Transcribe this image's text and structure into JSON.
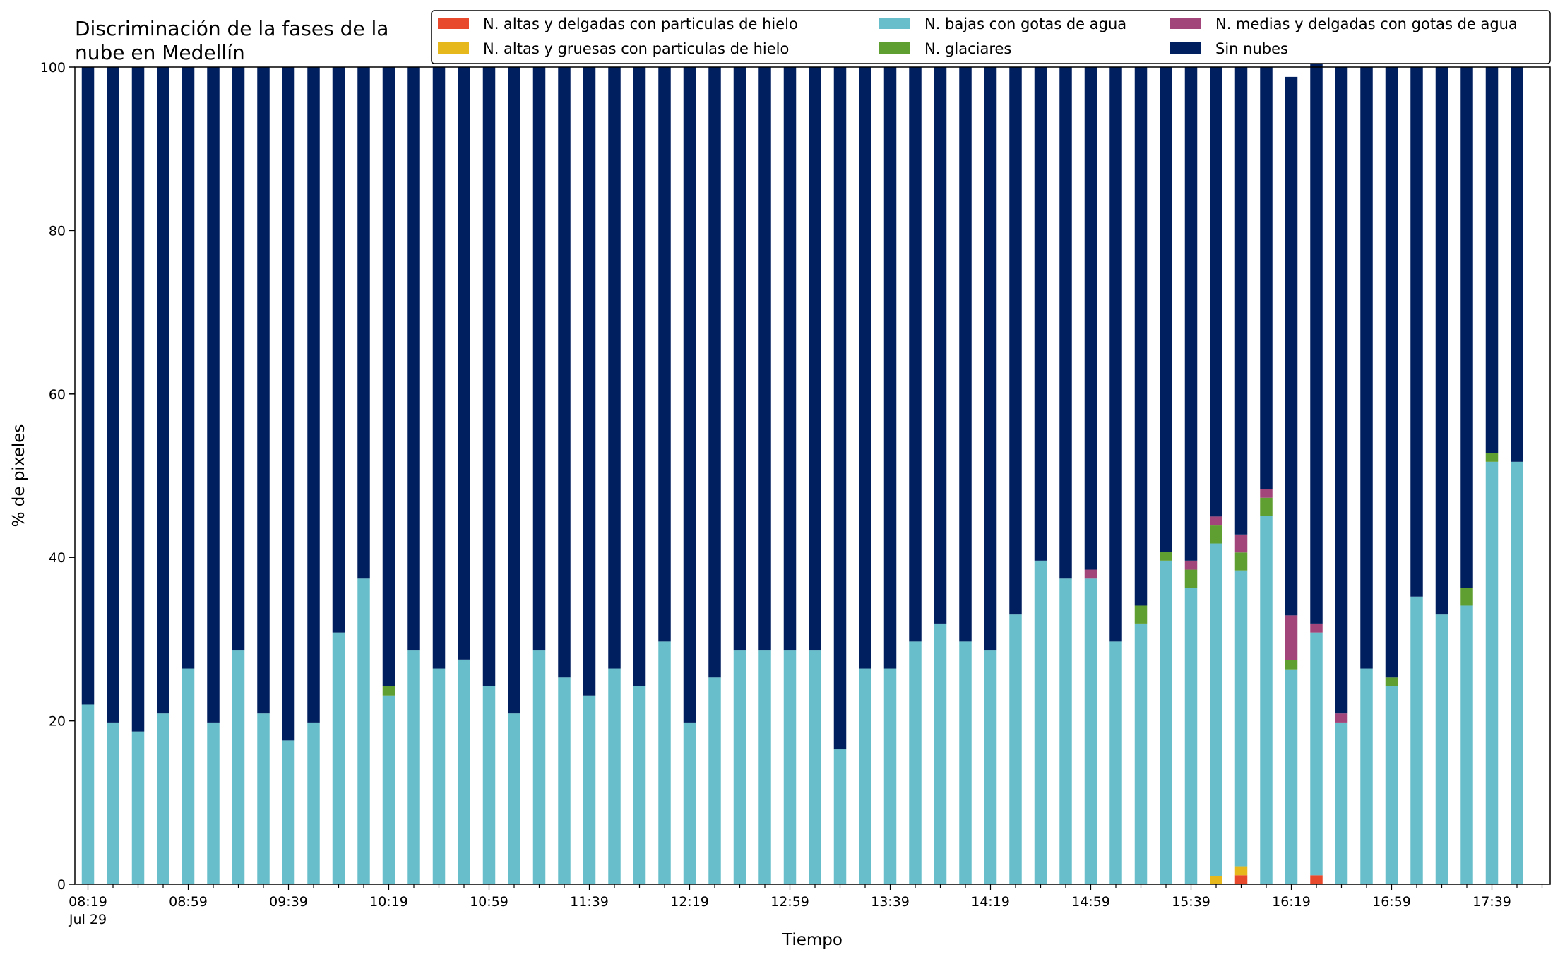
{
  "chart_data": {
    "type": "bar",
    "stacked": true,
    "title_lines": [
      "Discriminación de la fases de la",
      "nube en Medellín"
    ],
    "xlabel": "Tiempo",
    "ylabel": "% de pixeles",
    "ylim": [
      0,
      100
    ],
    "y_ticks": [
      0,
      20,
      40,
      60,
      80,
      100
    ],
    "x_tick_labels": [
      "08:19",
      "08:59",
      "09:39",
      "10:19",
      "10:59",
      "11:39",
      "12:19",
      "12:59",
      "13:39",
      "14:19",
      "14:59",
      "15:39",
      "16:19",
      "16:59",
      "17:39"
    ],
    "x_date_label": "Jul 29",
    "legend_position": "top-right",
    "categories": [
      "08:19",
      "08:29",
      "08:39",
      "08:49",
      "08:59",
      "09:09",
      "09:19",
      "09:29",
      "09:39",
      "09:49",
      "09:59",
      "10:09",
      "10:19",
      "10:29",
      "10:39",
      "10:49",
      "10:59",
      "11:09",
      "11:19",
      "11:29",
      "11:39",
      "11:49",
      "11:59",
      "12:09",
      "12:19",
      "12:29",
      "12:39",
      "12:49",
      "12:59",
      "13:09",
      "13:19",
      "13:29",
      "13:39",
      "13:49",
      "13:59",
      "14:09",
      "14:19",
      "14:29",
      "14:39",
      "14:49",
      "14:59",
      "15:09",
      "15:19",
      "15:29",
      "15:39",
      "15:49",
      "15:59",
      "16:09",
      "16:19",
      "16:29",
      "16:39",
      "16:49",
      "16:59",
      "17:09",
      "17:19",
      "17:29",
      "17:39",
      "17:49"
    ],
    "series": [
      {
        "name": "N. altas y delgadas con particulas de hielo",
        "color": "#e8482b",
        "values": [
          0,
          0,
          0,
          0,
          0,
          0,
          0,
          0,
          0,
          0,
          0,
          0,
          0,
          0,
          0,
          0,
          0,
          0,
          0,
          0,
          0,
          0,
          0,
          0,
          0,
          0,
          0,
          0,
          0,
          0,
          0,
          0,
          0,
          0,
          0,
          0,
          0,
          0,
          0,
          0,
          0,
          0,
          0,
          0,
          0,
          0,
          1.1,
          0,
          0,
          1.1,
          0,
          0,
          0,
          0,
          0,
          0,
          0,
          0
        ]
      },
      {
        "name": "N. altas y gruesas con particulas de hielo",
        "color": "#e6b81c",
        "values": [
          0,
          0,
          0,
          0,
          0,
          0,
          0,
          0,
          0,
          0,
          0,
          0,
          0,
          0,
          0,
          0,
          0,
          0,
          0,
          0,
          0,
          0,
          0,
          0,
          0,
          0,
          0,
          0,
          0,
          0,
          0,
          0,
          0,
          0,
          0,
          0,
          0,
          0,
          0,
          0,
          0,
          0,
          0,
          0,
          0,
          1.0,
          1.1,
          0,
          0,
          0,
          0,
          0,
          0,
          0,
          0,
          0,
          0,
          0
        ]
      },
      {
        "name": "N. bajas con gotas de agua",
        "color": "#68bfcb",
        "values": [
          22,
          19.8,
          18.7,
          20.9,
          26.4,
          19.8,
          28.6,
          20.9,
          17.6,
          19.8,
          30.8,
          37.4,
          23.1,
          28.6,
          26.4,
          27.5,
          24.2,
          20.9,
          28.6,
          25.3,
          23.1,
          26.4,
          24.2,
          29.7,
          19.8,
          25.3,
          28.6,
          28.6,
          28.6,
          28.6,
          16.5,
          26.4,
          26.4,
          29.7,
          31.9,
          29.7,
          28.6,
          33,
          39.6,
          37.4,
          37.4,
          29.7,
          31.9,
          39.6,
          36.3,
          40.7,
          36.2,
          45.1,
          26.3,
          29.7,
          19.8,
          26.4,
          24.2,
          35.2,
          33,
          34.1,
          51.7,
          51.7
        ]
      },
      {
        "name": "N. glaciares",
        "color": "#5f9e31",
        "values": [
          0,
          0,
          0,
          0,
          0,
          0,
          0,
          0,
          0,
          0,
          0,
          0,
          1.1,
          0,
          0,
          0,
          0,
          0,
          0,
          0,
          0,
          0,
          0,
          0,
          0,
          0,
          0,
          0,
          0,
          0,
          0,
          0,
          0,
          0,
          0,
          0,
          0,
          0,
          0,
          0,
          0,
          0,
          2.2,
          1.1,
          2.2,
          2.2,
          2.2,
          2.2,
          1.1,
          0,
          0,
          0,
          1.1,
          0,
          0,
          2.2,
          1.1,
          0
        ]
      },
      {
        "name": "N. medias y delgadas con gotas de agua",
        "color": "#a2457a",
        "values": [
          0,
          0,
          0,
          0,
          0,
          0,
          0,
          0,
          0,
          0,
          0,
          0,
          0,
          0,
          0,
          0,
          0,
          0,
          0,
          0,
          0,
          0,
          0,
          0,
          0,
          0,
          0,
          0,
          0,
          0,
          0,
          0,
          0,
          0,
          0,
          0,
          0,
          0,
          0,
          0,
          1.1,
          0,
          0,
          0,
          1.1,
          1.1,
          2.2,
          1.1,
          5.5,
          1.1,
          1.1,
          0,
          0,
          0,
          0,
          0,
          0,
          0
        ]
      },
      {
        "name": "Sin nubes",
        "color": "#001f5f",
        "values": [
          78,
          80.2,
          81.3,
          79.1,
          73.6,
          80.2,
          71.4,
          79.1,
          82.4,
          80.2,
          69.2,
          62.6,
          75.8,
          71.4,
          73.6,
          72.5,
          75.8,
          79.1,
          71.4,
          74.7,
          76.9,
          73.6,
          75.8,
          70.3,
          80.2,
          74.7,
          71.4,
          71.4,
          71.4,
          71.4,
          83.5,
          73.6,
          73.6,
          70.3,
          68.1,
          70.3,
          71.4,
          67,
          60.4,
          62.6,
          61.5,
          70.3,
          65.9,
          59.3,
          60.4,
          55,
          57.2,
          51.6,
          65.9,
          69.2,
          79.1,
          73.6,
          74.7,
          64.8,
          67,
          63.7,
          47.2,
          48.3
        ]
      }
    ]
  }
}
